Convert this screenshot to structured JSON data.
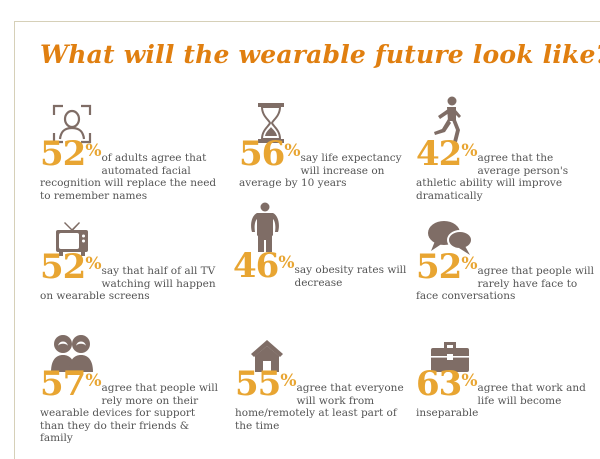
{
  "title": "What will the wearable future look like?",
  "percent_sign": "%",
  "colors": {
    "accent": "#e07f10",
    "number": "#e8a532",
    "icon": "#7f6d66",
    "text": "#555555"
  },
  "stats": [
    {
      "icon": "facial-recognition-icon",
      "value": "52",
      "text": "of adults agree that automated facial recognition will replace the need to remember names"
    },
    {
      "icon": "hourglass-icon",
      "value": "56",
      "text": "say life expectancy will increase on average by 10 years"
    },
    {
      "icon": "runner-icon",
      "value": "42",
      "text": "agree that the average person's athletic ability will improve dramatically"
    },
    {
      "icon": "television-icon",
      "value": "52",
      "text": "say that half of all TV watching will happen on wearable screens"
    },
    {
      "icon": "overweight-person-icon",
      "value": "46",
      "text": "say obesity rates will decrease"
    },
    {
      "icon": "speech-bubbles-icon",
      "value": "52",
      "text": "agree that people will rarely have face to face conversations"
    },
    {
      "icon": "people-icon",
      "value": "57",
      "text": "agree that people will rely more on their wearable devices for support than they do their friends & family"
    },
    {
      "icon": "house-icon",
      "value": "55",
      "text": "agree that everyone will work from home/remotely at least part of the time"
    },
    {
      "icon": "briefcase-icon",
      "value": "63",
      "text": "agree that work and life will become inseparable"
    }
  ]
}
